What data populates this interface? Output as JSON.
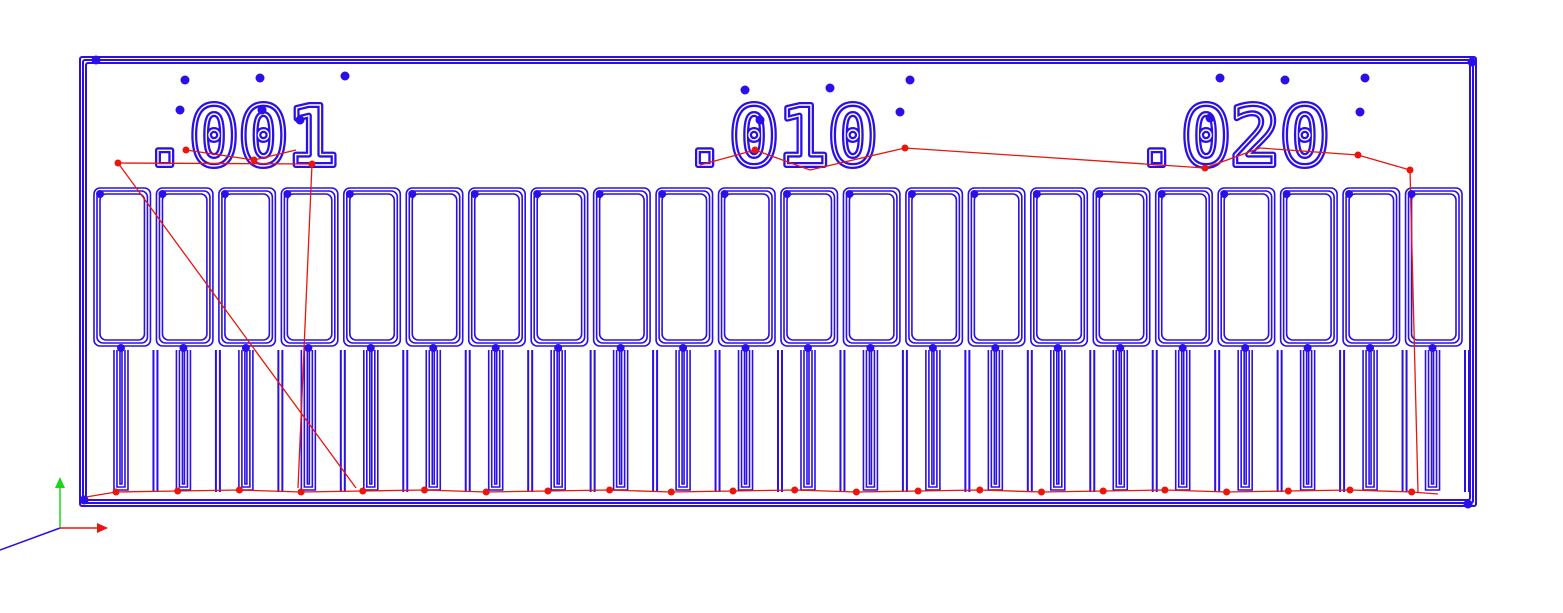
{
  "toolpath": {
    "labels": [
      ".001",
      ".010",
      ".020"
    ],
    "tooth_count": 22,
    "colors": {
      "cut": "#2a10e6",
      "travel": "#e8160c",
      "axis_x": "#e8160c",
      "axis_y": "#18d818",
      "axis_z": "#2a10e6",
      "background": "#ffffff"
    }
  },
  "axes": {
    "x_icon": "axis-x-arrow",
    "y_icon": "axis-y-arrow",
    "z_icon": "axis-z-line"
  }
}
